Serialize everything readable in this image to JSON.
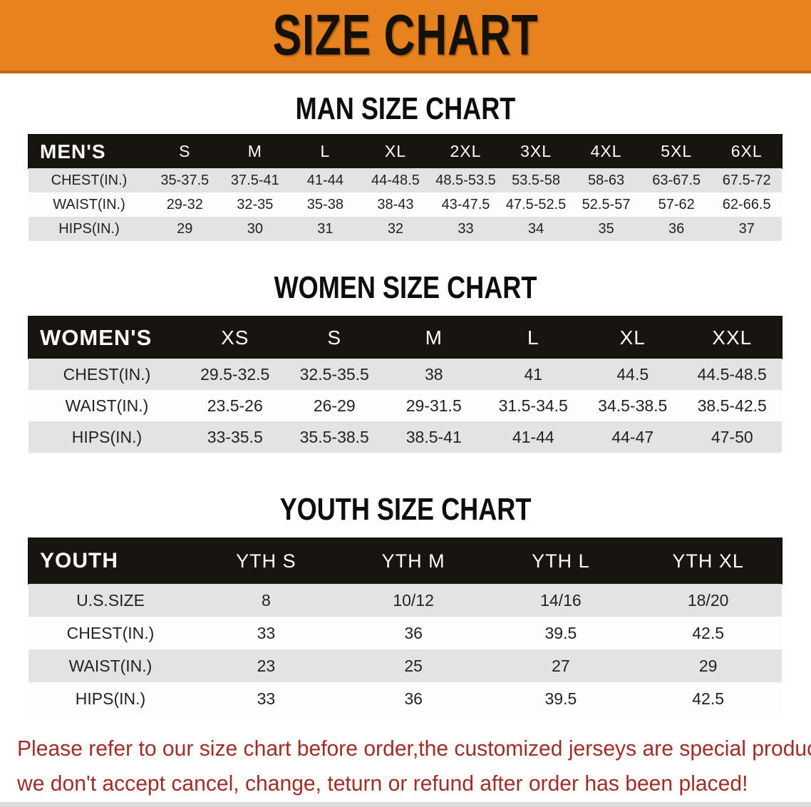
{
  "banner": {
    "title": "SIZE CHART"
  },
  "sections": [
    {
      "heading": "MAN SIZE CHART",
      "table": {
        "group_label": "MEN'S",
        "size_columns": [
          "S",
          "M",
          "L",
          "XL",
          "2XL",
          "3XL",
          "4XL",
          "5XL",
          "6XL"
        ],
        "rows": [
          {
            "label": "CHEST(IN.)",
            "values": [
              "35-37.5",
              "37.5-41",
              "41-44",
              "44-48.5",
              "48.5-53.5",
              "53.5-58",
              "58-63",
              "63-67.5",
              "67.5-72"
            ]
          },
          {
            "label": "WAIST(IN.)",
            "values": [
              "29-32",
              "32-35",
              "35-38",
              "38-43",
              "43-47.5",
              "47.5-52.5",
              "52.5-57",
              "57-62",
              "62-66.5"
            ]
          },
          {
            "label": "HIPS(IN.)",
            "values": [
              "29",
              "30",
              "31",
              "32",
              "33",
              "34",
              "35",
              "36",
              "37"
            ]
          }
        ]
      }
    },
    {
      "heading": "WOMEN SIZE CHART",
      "table": {
        "group_label": "WOMEN'S",
        "size_columns": [
          "XS",
          "S",
          "M",
          "L",
          "XL",
          "XXL"
        ],
        "rows": [
          {
            "label": "CHEST(IN.)",
            "values": [
              "29.5-32.5",
              "32.5-35.5",
              "38",
              "41",
              "44.5",
              "44.5-48.5"
            ]
          },
          {
            "label": "WAIST(IN.)",
            "values": [
              "23.5-26",
              "26-29",
              "29-31.5",
              "31.5-34.5",
              "34.5-38.5",
              "38.5-42.5"
            ]
          },
          {
            "label": "HIPS(IN.)",
            "values": [
              "33-35.5",
              "35.5-38.5",
              "38.5-41",
              "41-44",
              "44-47",
              "47-50"
            ]
          }
        ]
      }
    },
    {
      "heading": "YOUTH SIZE CHART",
      "table": {
        "group_label": "YOUTH",
        "size_columns": [
          "YTH S",
          "YTH M",
          "YTH L",
          "YTH XL"
        ],
        "rows": [
          {
            "label": "U.S.SIZE",
            "values": [
              "8",
              "10/12",
              "14/16",
              "18/20"
            ]
          },
          {
            "label": "CHEST(IN.)",
            "values": [
              "33",
              "36",
              "39.5",
              "42.5"
            ]
          },
          {
            "label": "WAIST(IN.)",
            "values": [
              "23",
              "25",
              "27",
              "29"
            ]
          },
          {
            "label": "HIPS(IN.)",
            "values": [
              "33",
              "36",
              "39.5",
              "42.5"
            ]
          }
        ]
      }
    }
  ],
  "footer": {
    "line1": "Please refer to our size chart before order,the customized jerseys are special products,",
    "line2": "we don't accept cancel, change, teturn or refund after order has been placed!"
  },
  "colors": {
    "banner_bg": "#E8821E",
    "banner_border": "#C2661B",
    "header_bar_bg": "#18140F",
    "row_alt_bg": "#E3E3E3",
    "footer_text": "#A02E27"
  }
}
